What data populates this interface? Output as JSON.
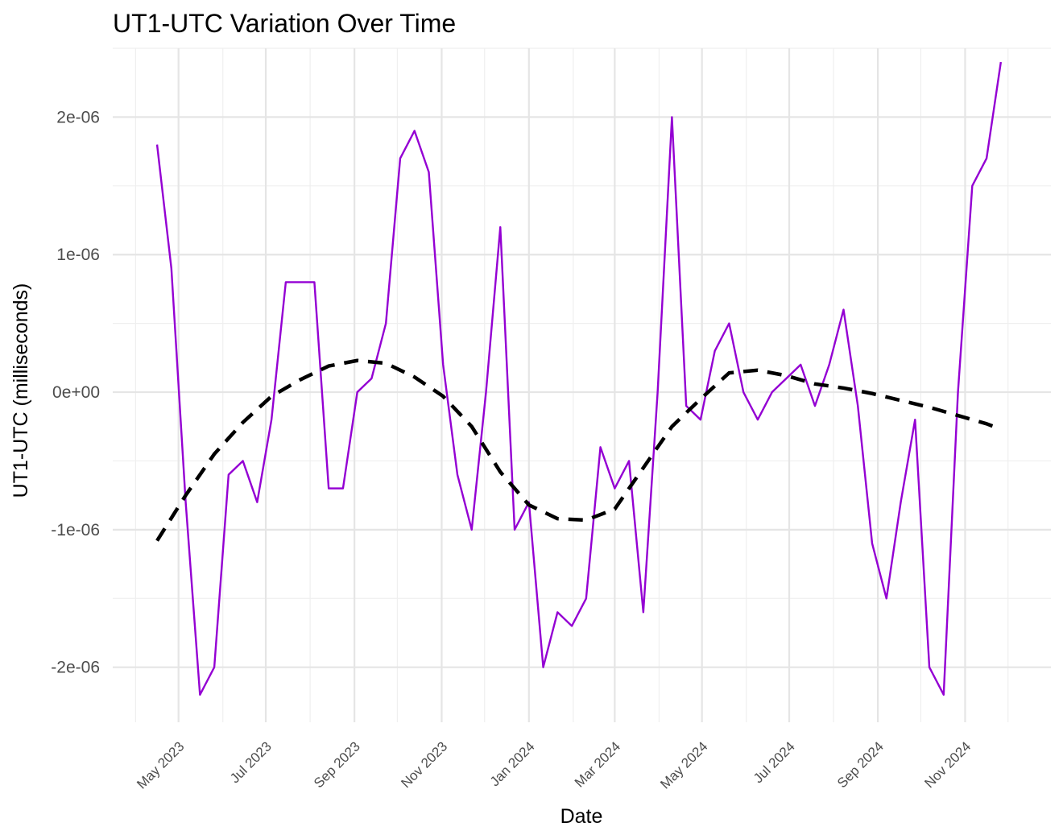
{
  "chart_data": {
    "type": "line",
    "title": "UT1-UTC Variation Over Time",
    "xlabel": "Date",
    "ylabel": "UT1-UTC (milliseconds)",
    "xlim": [
      "2023-03-16",
      "2024-12-31"
    ],
    "ylim": [
      -2.4e-06,
      2.5e-06
    ],
    "x_ticks": [
      {
        "date": "2023-05-01",
        "label": "May 2023"
      },
      {
        "date": "2023-07-01",
        "label": "Jul 2023"
      },
      {
        "date": "2023-09-01",
        "label": "Sep 2023"
      },
      {
        "date": "2023-11-01",
        "label": "Nov 2023"
      },
      {
        "date": "2024-01-01",
        "label": "Jan 2024"
      },
      {
        "date": "2024-03-01",
        "label": "Mar 2024"
      },
      {
        "date": "2024-05-01",
        "label": "May 2024"
      },
      {
        "date": "2024-07-01",
        "label": "Jul 2024"
      },
      {
        "date": "2024-09-01",
        "label": "Sep 2024"
      },
      {
        "date": "2024-11-01",
        "label": "Nov 2024"
      }
    ],
    "y_ticks": [
      {
        "value": -2e-06,
        "label": "-2e-06"
      },
      {
        "value": -1e-06,
        "label": "-1e-06"
      },
      {
        "value": 0,
        "label": "0e+00"
      },
      {
        "value": 1e-06,
        "label": "1e-06"
      },
      {
        "value": 2e-06,
        "label": "2e-06"
      }
    ],
    "grid": true,
    "series": [
      {
        "style": "solid",
        "color": "#9400d3",
        "points": [
          {
            "x": "2023-04-16",
            "y": 1.8e-06
          },
          {
            "x": "2023-04-26",
            "y": 9e-07
          },
          {
            "x": "2023-05-06",
            "y": -8e-07
          },
          {
            "x": "2023-05-16",
            "y": -2.2e-06
          },
          {
            "x": "2023-05-26",
            "y": -2e-06
          },
          {
            "x": "2023-06-05",
            "y": -6e-07
          },
          {
            "x": "2023-06-15",
            "y": -5e-07
          },
          {
            "x": "2023-06-25",
            "y": -8e-07
          },
          {
            "x": "2023-07-05",
            "y": -2e-07
          },
          {
            "x": "2023-07-15",
            "y": 8e-07
          },
          {
            "x": "2023-07-25",
            "y": 8e-07
          },
          {
            "x": "2023-08-04",
            "y": 8e-07
          },
          {
            "x": "2023-08-14",
            "y": -7e-07
          },
          {
            "x": "2023-08-24",
            "y": -7e-07
          },
          {
            "x": "2023-09-03",
            "y": 0.0
          },
          {
            "x": "2023-09-13",
            "y": 1e-07
          },
          {
            "x": "2023-09-23",
            "y": 5e-07
          },
          {
            "x": "2023-10-03",
            "y": 1.7e-06
          },
          {
            "x": "2023-10-13",
            "y": 1.9e-06
          },
          {
            "x": "2023-10-23",
            "y": 1.6e-06
          },
          {
            "x": "2023-11-02",
            "y": 2e-07
          },
          {
            "x": "2023-11-12",
            "y": -6e-07
          },
          {
            "x": "2023-11-22",
            "y": -1e-06
          },
          {
            "x": "2023-12-02",
            "y": 0.0
          },
          {
            "x": "2023-12-12",
            "y": 1.2e-06
          },
          {
            "x": "2023-12-22",
            "y": -1e-06
          },
          {
            "x": "2024-01-01",
            "y": -8e-07
          },
          {
            "x": "2024-01-11",
            "y": -2e-06
          },
          {
            "x": "2024-01-21",
            "y": -1.6e-06
          },
          {
            "x": "2024-01-31",
            "y": -1.7e-06
          },
          {
            "x": "2024-02-10",
            "y": -1.5e-06
          },
          {
            "x": "2024-02-20",
            "y": -4e-07
          },
          {
            "x": "2024-03-01",
            "y": -7e-07
          },
          {
            "x": "2024-03-11",
            "y": -5e-07
          },
          {
            "x": "2024-03-21",
            "y": -1.6e-06
          },
          {
            "x": "2024-03-31",
            "y": 0.0
          },
          {
            "x": "2024-04-10",
            "y": 2e-06
          },
          {
            "x": "2024-04-20",
            "y": -1e-07
          },
          {
            "x": "2024-04-30",
            "y": -2e-07
          },
          {
            "x": "2024-05-10",
            "y": 3e-07
          },
          {
            "x": "2024-05-20",
            "y": 5e-07
          },
          {
            "x": "2024-05-30",
            "y": 0.0
          },
          {
            "x": "2024-06-09",
            "y": -2e-07
          },
          {
            "x": "2024-06-19",
            "y": 0.0
          },
          {
            "x": "2024-06-29",
            "y": 1e-07
          },
          {
            "x": "2024-07-09",
            "y": 2e-07
          },
          {
            "x": "2024-07-19",
            "y": -1e-07
          },
          {
            "x": "2024-07-29",
            "y": 2e-07
          },
          {
            "x": "2024-08-08",
            "y": 6e-07
          },
          {
            "x": "2024-08-18",
            "y": -1e-07
          },
          {
            "x": "2024-08-28",
            "y": -1.1e-06
          },
          {
            "x": "2024-09-07",
            "y": -1.5e-06
          },
          {
            "x": "2024-09-17",
            "y": -8e-07
          },
          {
            "x": "2024-09-27",
            "y": -2e-07
          },
          {
            "x": "2024-10-07",
            "y": -2e-06
          },
          {
            "x": "2024-10-17",
            "y": -2.2e-06
          },
          {
            "x": "2024-10-27",
            "y": 0.0
          },
          {
            "x": "2024-11-06",
            "y": 1.5e-06
          },
          {
            "x": "2024-11-16",
            "y": 1.7e-06
          },
          {
            "x": "2024-11-26",
            "y": 2.4e-06
          }
        ]
      },
      {
        "style": "dashed",
        "color": "#000000",
        "points": [
          {
            "x": "2023-04-16",
            "y": -1.08e-06
          },
          {
            "x": "2023-05-06",
            "y": -7.5e-07
          },
          {
            "x": "2023-05-26",
            "y": -4.5e-07
          },
          {
            "x": "2023-06-15",
            "y": -2.2e-07
          },
          {
            "x": "2023-07-05",
            "y": -3e-08
          },
          {
            "x": "2023-07-25",
            "y": 9e-08
          },
          {
            "x": "2023-08-14",
            "y": 1.9e-07
          },
          {
            "x": "2023-09-03",
            "y": 2.3e-07
          },
          {
            "x": "2023-09-23",
            "y": 2.1e-07
          },
          {
            "x": "2023-10-13",
            "y": 1.1e-07
          },
          {
            "x": "2023-11-02",
            "y": -3e-08
          },
          {
            "x": "2023-11-22",
            "y": -2.5e-07
          },
          {
            "x": "2023-12-12",
            "y": -5.8e-07
          },
          {
            "x": "2024-01-01",
            "y": -8.2e-07
          },
          {
            "x": "2024-01-21",
            "y": -9.2e-07
          },
          {
            "x": "2024-02-10",
            "y": -9.3e-07
          },
          {
            "x": "2024-03-01",
            "y": -8.5e-07
          },
          {
            "x": "2024-03-21",
            "y": -5.5e-07
          },
          {
            "x": "2024-04-10",
            "y": -2.5e-07
          },
          {
            "x": "2024-04-30",
            "y": -5e-08
          },
          {
            "x": "2024-05-20",
            "y": 1.4e-07
          },
          {
            "x": "2024-06-09",
            "y": 1.6e-07
          },
          {
            "x": "2024-06-29",
            "y": 1.2e-07
          },
          {
            "x": "2024-07-19",
            "y": 6e-08
          },
          {
            "x": "2024-08-08",
            "y": 3e-08
          },
          {
            "x": "2024-08-28",
            "y": -1e-08
          },
          {
            "x": "2024-09-17",
            "y": -6e-08
          },
          {
            "x": "2024-10-07",
            "y": -1.1e-07
          },
          {
            "x": "2024-10-27",
            "y": -1.7e-07
          },
          {
            "x": "2024-11-16",
            "y": -2.3e-07
          },
          {
            "x": "2024-11-26",
            "y": -2.7e-07
          }
        ]
      }
    ]
  }
}
